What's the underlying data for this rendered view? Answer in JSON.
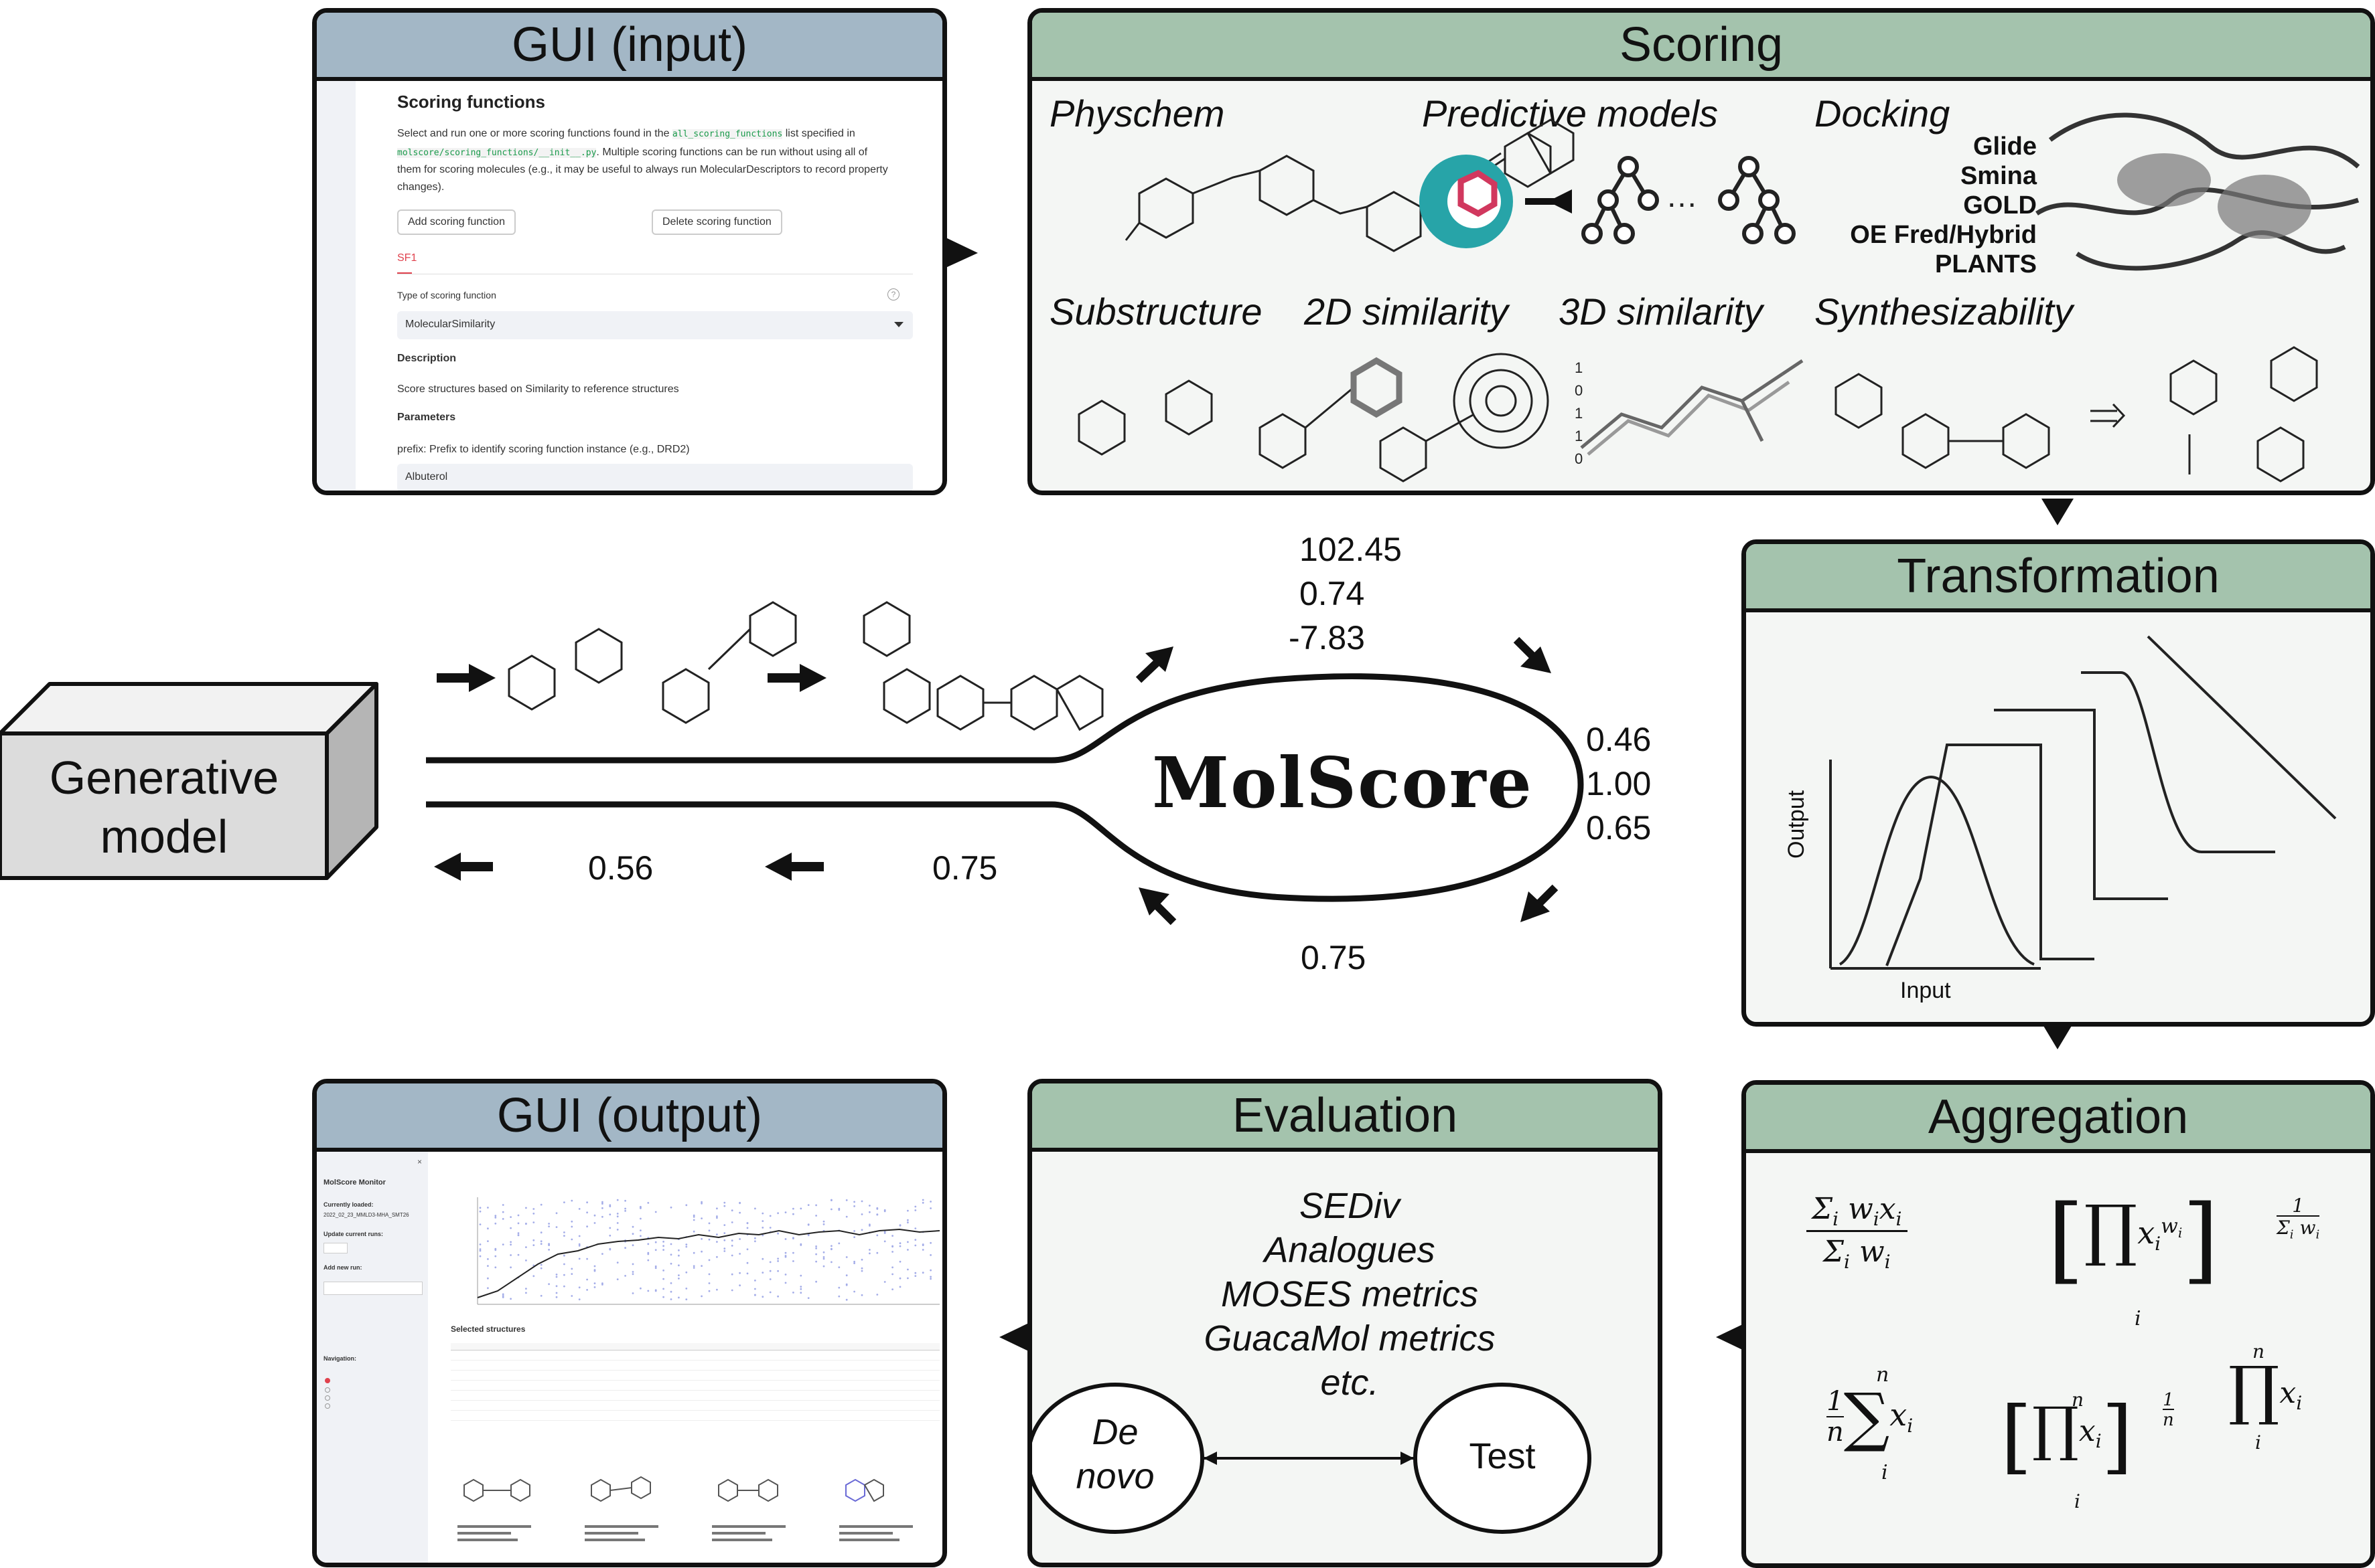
{
  "diagram": {
    "center_label": "MolScore",
    "generative_model": "Generative\nmodel",
    "scores_raw": [
      "102.45",
      "0.74",
      "-7.83"
    ],
    "scores_transformed": [
      "0.46",
      "1.00",
      "0.65"
    ],
    "score_aggregated": "0.75",
    "loop_values": [
      "0.75",
      "0.56"
    ]
  },
  "gui_input": {
    "title": "GUI (input)",
    "heading": "Scoring functions",
    "desc_1a": "Select and run one or more scoring functions found in the",
    "desc_code_1": "all_scoring_functions",
    "desc_1b": "list specified in",
    "desc_code_2": "molscore/scoring_functions/__init__.py",
    "desc_2": ". Multiple scoring functions can be run without using all of",
    "desc_3": "them for scoring molecules (e.g., it may be useful to always run MolecularDescriptors to record property",
    "desc_4": "changes).",
    "add_button": "Add scoring function",
    "delete_button": "Delete scoring function",
    "tab": "SF1",
    "type_label": "Type of scoring function",
    "type_value": "MolecularSimilarity",
    "description_heading": "Description",
    "description_text": "Score structures based on Similarity to reference structures",
    "parameters_heading": "Parameters",
    "prefix_label": "prefix: Prefix to identify scoring function instance (e.g., DRD2)",
    "prefix_value": "Albuterol"
  },
  "scoring": {
    "title": "Scoring",
    "physchem": "Physchem",
    "predictive": "Predictive models",
    "docking": "Docking",
    "docking_tools": [
      "Glide",
      "Smina",
      "GOLD",
      "OE Fred/Hybrid",
      "PLANTS"
    ],
    "substructure": "Substructure",
    "sim2d": "2D similarity",
    "sim3d": "3D similarity",
    "synth": "Synthesizability",
    "fingerprint_bits": [
      "1",
      "0",
      "1",
      "1",
      "0"
    ]
  },
  "transformation": {
    "title": "Transformation",
    "xlabel": "Input",
    "ylabel": "Output"
  },
  "aggregation": {
    "title": "Aggregation"
  },
  "evaluation": {
    "title": "Evaluation",
    "metrics": [
      "SEDiv",
      "Analogues",
      "MOSES metrics",
      "GuacaMol metrics",
      "etc."
    ],
    "denovo": "De\nnovo",
    "test": "Test"
  },
  "gui_output": {
    "title": "GUI (output)",
    "monitor_title": "MolScore Monitor",
    "currently_loaded": "Currently loaded:",
    "run_name": "2022_02_23_MMLD3-MHA_SMT26",
    "update_runs": "Update current runs:",
    "add_new_run": "Add new run:",
    "navigation": "Navigation:",
    "selected_structures": "Selected structures"
  }
}
